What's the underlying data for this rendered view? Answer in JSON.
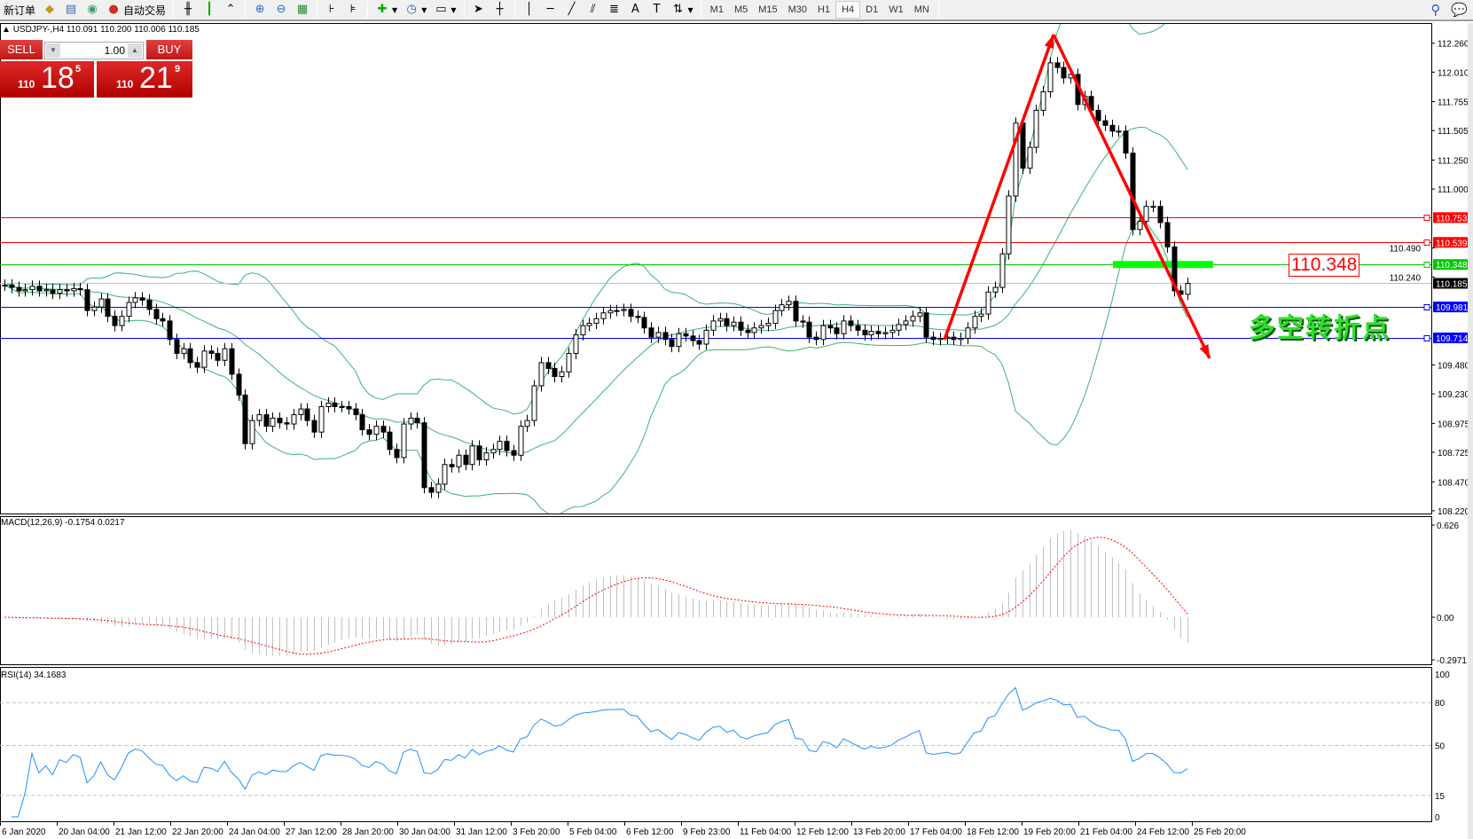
{
  "toolbar": {
    "new_order": "新订单",
    "auto_trading": "自动交易",
    "timeframes": [
      "M1",
      "M5",
      "M15",
      "M30",
      "H1",
      "H4",
      "D1",
      "W1",
      "MN"
    ],
    "selected_timeframe": "H4"
  },
  "symbol_line": "USDJPY-,H4  110.091 110.200 110.006 110.185",
  "trade_panel": {
    "sell_label": "SELL",
    "buy_label": "BUY",
    "lot": "1.00",
    "sell_prefix": "110",
    "sell_big": "18",
    "sell_pip": "5",
    "buy_prefix": "110",
    "buy_big": "21",
    "buy_pip": "9"
  },
  "annotations": {
    "price_box": "110.348",
    "text": "多空转折点"
  },
  "colors": {
    "bull": "#ffffff",
    "bear": "#000000",
    "bands": "#3cb371",
    "red_line": "#ff0000",
    "green_line": "#00c800",
    "blue_line": "#0000ff",
    "arrow": "#ff0000",
    "rsi": "#1e90ff",
    "macd_signal": "#ff0000",
    "macd_hist": "#c0c0c0"
  },
  "chart_data": [
    {
      "type": "candlestick",
      "symbol": "USDJPY-",
      "timeframe": "H4",
      "ylim": [
        108.22,
        112.26
      ],
      "price_ticks": [
        "112.260",
        "112.010",
        "111.755",
        "111.505",
        "111.250",
        "111.000",
        "110.490",
        "110.240",
        "109.480",
        "109.230",
        "108.975",
        "108.725",
        "108.470",
        "108.220"
      ],
      "close": [
        110.17,
        110.15,
        110.12,
        110.13,
        110.16,
        110.12,
        110.13,
        110.1,
        110.13,
        110.12,
        110.14,
        110.13,
        109.95,
        109.98,
        110.05,
        109.9,
        109.82,
        109.9,
        110.02,
        110.06,
        110.04,
        109.96,
        109.88,
        109.86,
        109.7,
        109.58,
        109.62,
        109.5,
        109.46,
        109.6,
        109.58,
        109.52,
        109.62,
        109.4,
        109.22,
        108.8,
        109.0,
        109.05,
        108.95,
        109.02,
        108.98,
        108.97,
        109.05,
        109.1,
        109.0,
        108.9,
        109.12,
        109.15,
        109.12,
        109.12,
        109.1,
        109.05,
        108.92,
        108.88,
        108.95,
        108.9,
        108.75,
        108.68,
        108.97,
        109.02,
        108.98,
        108.42,
        108.38,
        108.45,
        108.62,
        108.6,
        108.7,
        108.62,
        108.78,
        108.66,
        108.72,
        108.75,
        108.82,
        108.74,
        108.7,
        108.95,
        109.0,
        109.3,
        109.5,
        109.45,
        109.38,
        109.42,
        109.58,
        109.74,
        109.82,
        109.84,
        109.88,
        109.93,
        109.95,
        109.95,
        109.96,
        109.9,
        109.89,
        109.8,
        109.72,
        109.76,
        109.7,
        109.64,
        109.75,
        109.73,
        109.69,
        109.66,
        109.78,
        109.86,
        109.88,
        109.82,
        109.85,
        109.78,
        109.76,
        109.8,
        109.82,
        109.84,
        109.95,
        110.0,
        110.03,
        109.86,
        109.85,
        109.72,
        109.7,
        109.82,
        109.8,
        109.75,
        109.86,
        109.82,
        109.78,
        109.74,
        109.77,
        109.75,
        109.76,
        109.78,
        109.83,
        109.86,
        109.9,
        109.93,
        109.72,
        109.7,
        109.71,
        109.72,
        109.7,
        109.71,
        109.8,
        109.9,
        109.92,
        110.11,
        110.15,
        110.44,
        110.94,
        111.57,
        111.18,
        111.36,
        111.68,
        111.84,
        112.09,
        112.05,
        111.96,
        111.99,
        111.73,
        111.8,
        111.68,
        111.59,
        111.55,
        111.5,
        111.5,
        111.31,
        110.65,
        110.72,
        110.85,
        110.85,
        110.71,
        110.5,
        110.12,
        110.09,
        110.185
      ],
      "indicator": "Bollinger Bands",
      "levels": [
        {
          "price": "110.753",
          "color": "#ff0000"
        },
        {
          "price": "110.539",
          "color": "#ff0000"
        },
        {
          "price": "110.348",
          "color": "#00c800"
        },
        {
          "price": "110.185",
          "color": "#000000"
        },
        {
          "price": "109.981",
          "color": "#0000ff"
        },
        {
          "price": "109.714",
          "color": "#0000ff"
        }
      ],
      "x_labels": [
        "6 Jan 2020",
        "20 Jan 04:00",
        "21 Jan 12:00",
        "22 Jan 20:00",
        "24 Jan 04:00",
        "27 Jan 12:00",
        "28 Jan 20:00",
        "30 Jan 04:00",
        "31 Jan 12:00",
        "3 Feb 20:00",
        "5 Feb 04:00",
        "6 Feb 12:00",
        "9 Feb 23:00",
        "11 Feb 04:00",
        "12 Feb 12:00",
        "13 Feb 20:00",
        "17 Feb 04:00",
        "18 Feb 12:00",
        "19 Feb 20:00",
        "21 Feb 04:00",
        "24 Feb 12:00",
        "25 Feb 20:00"
      ]
    },
    {
      "type": "bar",
      "title": "MACD(12,26,9) -0.1754 0.0217",
      "ylim": [
        -0.2971,
        0.626
      ],
      "ticks": [
        "0.626",
        "0.00",
        "-0.2971"
      ]
    },
    {
      "type": "line",
      "title": "RSI(14) 34.1683",
      "ylim": [
        0,
        100
      ],
      "ticks": [
        "100",
        "80",
        "50",
        "15",
        "0"
      ],
      "levels": [
        80,
        50,
        15
      ]
    }
  ]
}
